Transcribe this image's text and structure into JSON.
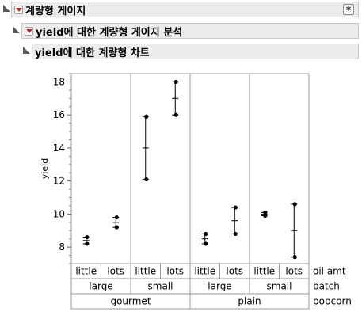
{
  "outline_title": "계량형 게이지",
  "analysis_title": "yield에 대한 계량형 게이지 분석",
  "chart_title": "yield에 대한 계량형 차트",
  "chart_data": {
    "type": "scatter",
    "ylabel": "yield",
    "ylim": [
      7,
      18.5
    ],
    "yticks": [
      8,
      10,
      12,
      14,
      16,
      18
    ],
    "level_labels": [
      "oil amt",
      "batch",
      "popcorn"
    ],
    "popcorn": [
      "gourmet",
      "plain"
    ],
    "batch": [
      "large",
      "small",
      "large",
      "small"
    ],
    "oil_amt": [
      "little",
      "lots",
      "little",
      "lots",
      "little",
      "lots",
      "little",
      "lots"
    ],
    "groups": [
      {
        "popcorn": "gourmet",
        "batch": "large",
        "oil_amt": "little",
        "values": [
          8.2,
          8.6
        ],
        "mean": 8.4
      },
      {
        "popcorn": "gourmet",
        "batch": "large",
        "oil_amt": "lots",
        "values": [
          9.2,
          9.8
        ],
        "mean": 9.5
      },
      {
        "popcorn": "gourmet",
        "batch": "small",
        "oil_amt": "little",
        "values": [
          12.1,
          15.9
        ],
        "mean": 14.0
      },
      {
        "popcorn": "gourmet",
        "batch": "small",
        "oil_amt": "lots",
        "values": [
          16.0,
          18.0
        ],
        "mean": 17.0
      },
      {
        "popcorn": "plain",
        "batch": "large",
        "oil_amt": "little",
        "values": [
          8.2,
          8.8
        ],
        "mean": 8.5
      },
      {
        "popcorn": "plain",
        "batch": "large",
        "oil_amt": "lots",
        "values": [
          8.8,
          10.4
        ],
        "mean": 9.6
      },
      {
        "popcorn": "plain",
        "batch": "small",
        "oil_amt": "little",
        "values": [
          9.9,
          10.1
        ],
        "mean": 10.0
      },
      {
        "popcorn": "plain",
        "batch": "small",
        "oil_amt": "lots",
        "values": [
          7.4,
          10.6
        ],
        "mean": 9.0
      }
    ]
  }
}
